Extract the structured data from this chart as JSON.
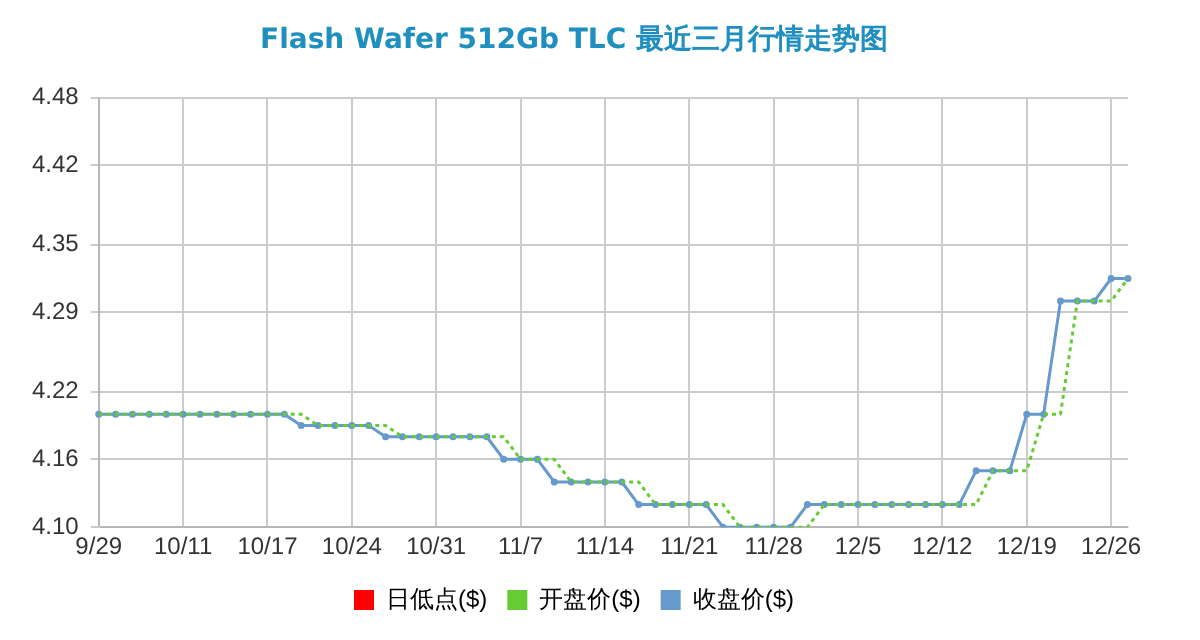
{
  "chart_data": {
    "type": "line",
    "title": "Flash Wafer 512Gb TLC 最近三月行情走势图",
    "categories": [
      "9/29",
      null,
      null,
      null,
      null,
      "10/11",
      null,
      null,
      null,
      null,
      "10/17",
      null,
      null,
      null,
      null,
      "10/24",
      null,
      null,
      null,
      null,
      "10/31",
      null,
      null,
      null,
      null,
      "11/7",
      null,
      null,
      null,
      null,
      "11/14",
      null,
      null,
      null,
      null,
      "11/21",
      null,
      null,
      null,
      null,
      "11/28",
      null,
      null,
      null,
      null,
      "12/5",
      null,
      null,
      null,
      null,
      "12/12",
      null,
      null,
      null,
      null,
      "12/19",
      null,
      null,
      null,
      null,
      "12/26",
      null
    ],
    "series": [
      {
        "name": "日低点($)",
        "color": "#ff0000",
        "marker": "none",
        "line_style": "solid",
        "values": [
          null,
          null,
          null,
          null,
          null,
          null,
          null,
          null,
          null,
          null,
          null,
          null,
          null,
          null,
          null,
          null,
          null,
          null,
          null,
          null,
          null,
          null,
          null,
          null,
          null,
          null,
          null,
          null,
          null,
          null,
          null,
          null,
          null,
          null,
          null,
          null,
          null,
          null,
          null,
          null,
          null,
          null,
          null,
          null,
          null,
          null,
          null,
          null,
          null,
          null,
          null,
          null,
          null,
          null,
          null,
          null,
          null,
          null,
          null,
          null,
          null,
          null
        ]
      },
      {
        "name": "开盘价($)",
        "color": "#66cc33",
        "marker": "none",
        "line_style": "dotted",
        "values": [
          4.2,
          4.2,
          4.2,
          4.2,
          4.2,
          4.2,
          4.2,
          4.2,
          4.2,
          4.2,
          4.2,
          4.2,
          4.2,
          4.19,
          4.19,
          4.19,
          4.19,
          4.19,
          4.18,
          4.18,
          4.18,
          4.18,
          4.18,
          4.18,
          4.18,
          4.16,
          4.16,
          4.16,
          4.14,
          4.14,
          4.14,
          4.14,
          4.14,
          4.12,
          4.12,
          4.12,
          4.12,
          4.12,
          4.1,
          4.1,
          4.1,
          4.1,
          4.1,
          4.12,
          4.12,
          4.12,
          4.12,
          4.12,
          4.12,
          4.12,
          4.12,
          4.12,
          4.12,
          4.15,
          4.15,
          4.15,
          4.2,
          4.2,
          4.3,
          4.3,
          4.3,
          4.32
        ]
      },
      {
        "name": "收盘价($)",
        "color": "#6699cc",
        "marker": "circle",
        "line_style": "solid",
        "values": [
          4.2,
          4.2,
          4.2,
          4.2,
          4.2,
          4.2,
          4.2,
          4.2,
          4.2,
          4.2,
          4.2,
          4.2,
          4.19,
          4.19,
          4.19,
          4.19,
          4.19,
          4.18,
          4.18,
          4.18,
          4.18,
          4.18,
          4.18,
          4.18,
          4.16,
          4.16,
          4.16,
          4.14,
          4.14,
          4.14,
          4.14,
          4.14,
          4.12,
          4.12,
          4.12,
          4.12,
          4.12,
          4.1,
          4.1,
          4.1,
          4.1,
          4.1,
          4.12,
          4.12,
          4.12,
          4.12,
          4.12,
          4.12,
          4.12,
          4.12,
          4.12,
          4.12,
          4.15,
          4.15,
          4.15,
          4.2,
          4.2,
          4.3,
          4.3,
          4.3,
          4.32,
          4.32
        ]
      }
    ],
    "ylim": [
      4.1,
      4.48
    ],
    "yticks": [
      {
        "value": 4.1,
        "label": "4.10"
      },
      4.16,
      4.22,
      4.29,
      4.35,
      4.42,
      4.48
    ],
    "grid": true,
    "legend": "bottom"
  }
}
